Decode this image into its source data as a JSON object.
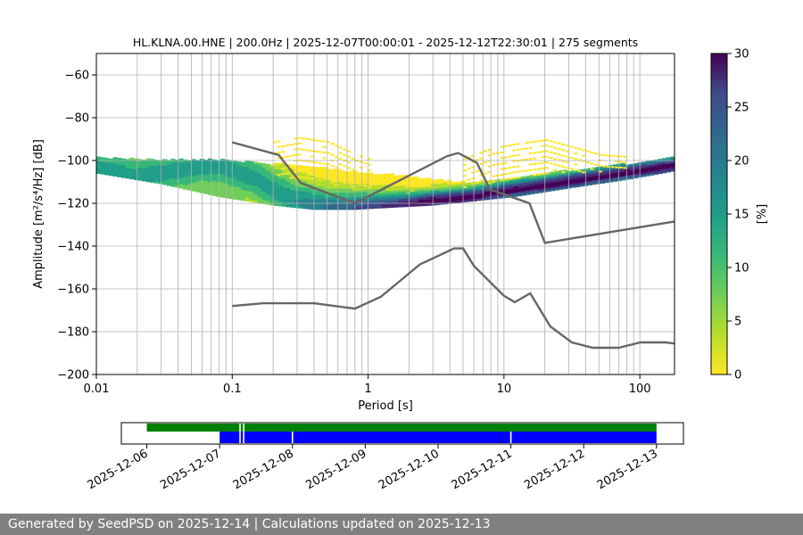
{
  "chart_data": {
    "type": "heatmap",
    "title": "HL.KLNA.00.HNE | 200.0Hz | 2025-12-07T00:00:01 - 2025-12-12T22:30:01 | 275 segments",
    "xlabel": "Period [s]",
    "ylabel": "Amplitude [m²/s⁴/Hz] [dB]",
    "xscale": "log",
    "xlim": [
      0.01,
      180
    ],
    "ylim": [
      -200,
      -50
    ],
    "x_ticks": [
      "0.01",
      "0.1",
      "1",
      "10",
      "100"
    ],
    "y_ticks": [
      "−200",
      "−180",
      "−160",
      "−140",
      "−120",
      "−100",
      "−80",
      "−60"
    ],
    "grid": true,
    "colorbar": {
      "label": "[%]",
      "range": [
        0,
        30
      ],
      "ticks": [
        "0",
        "5",
        "10",
        "15",
        "20",
        "25",
        "30"
      ],
      "colormap": "viridis_r"
    },
    "psd_mode": {
      "period": [
        0.01,
        0.02,
        0.04,
        0.06,
        0.08,
        0.1,
        0.15,
        0.2,
        0.3,
        0.5,
        0.8,
        1.2,
        2,
        3,
        5,
        8,
        12,
        20,
        40,
        80,
        180
      ],
      "db": [
        -103,
        -107,
        -104,
        -102,
        -102,
        -104,
        -108,
        -113,
        -119,
        -122,
        -122,
        -121,
        -120,
        -118,
        -117,
        -115,
        -113,
        -111,
        -108,
        -105,
        -102
      ]
    },
    "density_spread_db": {
      "period": [
        0.01,
        0.03,
        0.08,
        0.2,
        0.4,
        0.8,
        1.5,
        3,
        6,
        12,
        30,
        80,
        180
      ],
      "upper": [
        -98,
        -99,
        -99,
        -101,
        -102,
        -105,
        -106,
        -108,
        -110,
        -108,
        -104,
        -101,
        -98
      ],
      "lower": [
        -105,
        -110,
        -116,
        -120,
        -122,
        -122,
        -121,
        -120,
        -118,
        -116,
        -112,
        -108,
        -104
      ]
    },
    "sparse_band": {
      "period": [
        0.2,
        0.3,
        0.5,
        0.8,
        1.0
      ],
      "top": [
        -91,
        -89,
        -91,
        -97,
        -99
      ],
      "bottom": [
        -106,
        -109,
        -111,
        -112,
        -112
      ]
    },
    "sparse_band_2": {
      "period": [
        5,
        8,
        12,
        20,
        30,
        50,
        80
      ],
      "top": [
        -99,
        -94,
        -92,
        -90,
        -93,
        -97,
        -98
      ],
      "bottom": [
        -112,
        -110,
        -108,
        -106,
        -106,
        -105,
        -103
      ]
    },
    "noise_model_upper": {
      "period": [
        0.1,
        0.22,
        0.32,
        0.8,
        3.8,
        4.6,
        6.3,
        7.9,
        15.4,
        20,
        180
      ],
      "db": [
        -91.5,
        -97.4,
        -110.5,
        -120,
        -98,
        -96.5,
        -101,
        -113.5,
        -120,
        -138.5,
        -128.5
      ]
    },
    "noise_model_lower": {
      "period": [
        0.1,
        0.17,
        0.4,
        0.8,
        1.24,
        2.4,
        4.3,
        5.0,
        6.0,
        10,
        12,
        15.6,
        21.9,
        31.6,
        45,
        70,
        101,
        154,
        180
      ],
      "db": [
        -168,
        -166.7,
        -166.7,
        -169.2,
        -163.7,
        -148.6,
        -141.1,
        -141.1,
        -149.2,
        -163.2,
        -166.2,
        -162.1,
        -177.5,
        -185,
        -187.5,
        -187.5,
        -185,
        -185,
        -185.5
      ]
    },
    "timeline": {
      "ticks": [
        "2025-12-06",
        "2025-12-07",
        "2025-12-08",
        "2025-12-09",
        "2025-12-10",
        "2025-12-11",
        "2025-12-12",
        "2025-12-13"
      ],
      "green_span": [
        "2025-12-06",
        "2025-12-13"
      ],
      "blue_span": [
        "2025-12-07",
        "2025-12-13"
      ],
      "gaps_days": [
        7.28,
        7.33,
        8.0,
        11.0
      ],
      "green_color": "#008000",
      "blue_color": "#0000ff"
    }
  },
  "colors": {
    "noise_model": "#666666",
    "grid": "#b0b0b0",
    "footer_bg": "#808080"
  },
  "footer": {
    "text": "Generated by SeedPSD on 2025-12-14 | Calculations updated on 2025-12-13"
  }
}
